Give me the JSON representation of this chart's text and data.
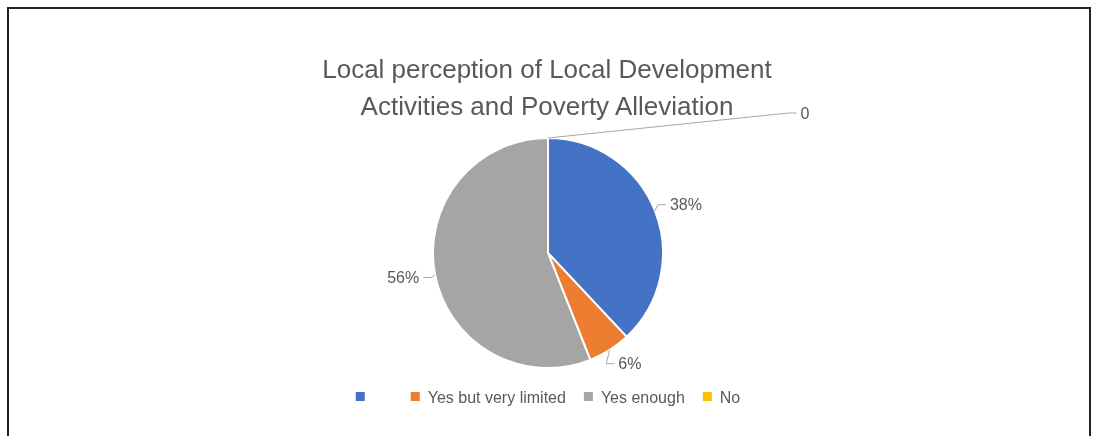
{
  "chart_data": {
    "type": "pie",
    "title": "Local perception of Local Development Activities and Poverty Alleviation",
    "categories": [
      null,
      "Yes but very limited",
      "Yes enough",
      "No"
    ],
    "values": [
      38,
      6,
      56,
      0
    ],
    "colors": [
      "#4472c4",
      "#ed7d31",
      "#a5a5a5",
      "#ffc000"
    ],
    "value_labels": [
      "38%",
      "6%",
      "56%",
      "0"
    ],
    "legend": "bottom"
  }
}
